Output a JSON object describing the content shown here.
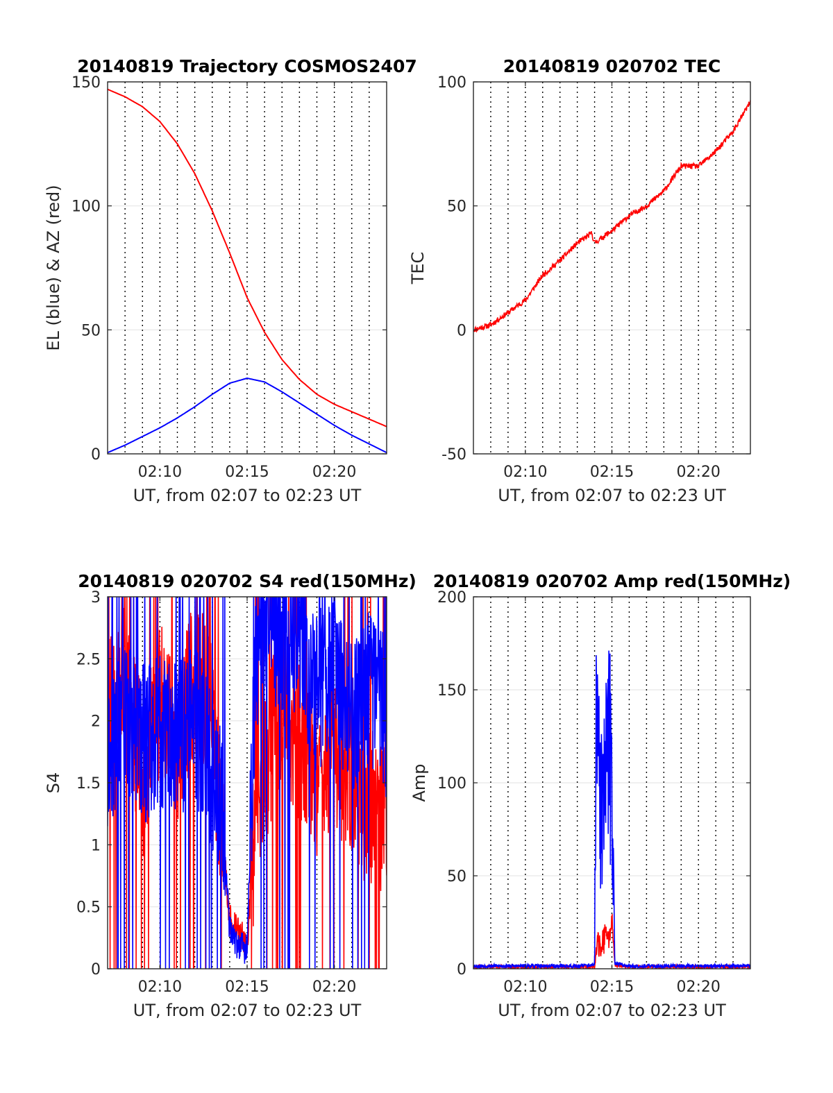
{
  "colors": {
    "el": "#0000ff",
    "az": "#ff0000",
    "tec": "#ff0000",
    "s4_red": "#ff0000",
    "s4_blue": "#0000ff",
    "amp_red": "#ff0000",
    "amp_blue": "#0000ff"
  },
  "chart_data": [
    {
      "type": "line",
      "title": "20140819 Trajectory COSMOS2407",
      "xlabel": "UT, from 02:07 to 02:23 UT",
      "ylabel": "EL (blue) & AZ (red)",
      "xlim": [
        "02:07",
        "02:23"
      ],
      "ylim": [
        0,
        150
      ],
      "xticks": [
        "02:10",
        "02:15",
        "02:20"
      ],
      "yticks": [
        0,
        50,
        100,
        150
      ],
      "grid": true,
      "series": [
        {
          "color": "#ff0000",
          "x": [
            "02:07",
            "02:08",
            "02:09",
            "02:10",
            "02:11",
            "02:12",
            "02:13",
            "02:14",
            "02:15",
            "02:16",
            "02:17",
            "02:18",
            "02:19",
            "02:20",
            "02:21",
            "02:22",
            "02:23"
          ],
          "values": [
            147,
            144,
            140,
            134,
            125,
            113,
            98,
            81,
            63,
            49,
            38,
            30,
            24,
            20,
            17,
            14,
            11
          ]
        },
        {
          "color": "#0000ff",
          "x": [
            "02:07",
            "02:08",
            "02:09",
            "02:10",
            "02:11",
            "02:12",
            "02:13",
            "02:14",
            "02:15",
            "02:16",
            "02:17",
            "02:18",
            "02:19",
            "02:20",
            "02:21",
            "02:22",
            "02:23"
          ],
          "values": [
            0.5,
            3.5,
            7,
            10.5,
            14.5,
            19,
            24,
            28.5,
            30.5,
            29,
            25,
            20.5,
            16,
            11.5,
            7.5,
            4,
            0.5
          ]
        }
      ]
    },
    {
      "type": "line",
      "title": "20140819 020702 TEC",
      "xlabel": "UT, from 02:07 to 02:23 UT",
      "ylabel": "TEC",
      "xlim": [
        "02:07",
        "02:23"
      ],
      "ylim": [
        -50,
        100
      ],
      "xticks": [
        "02:10",
        "02:15",
        "02:20"
      ],
      "yticks": [
        -50,
        0,
        50,
        100
      ],
      "grid": true,
      "series": [
        {
          "color": "#ff0000",
          "x": [
            "02:07",
            "02:08",
            "02:09",
            "02:10",
            "02:11",
            "02:12",
            "02:13",
            "02:13:50",
            "02:14",
            "02:15",
            "02:16",
            "02:17",
            "02:18",
            "02:19",
            "02:20",
            "02:21",
            "02:22",
            "02:23"
          ],
          "values": [
            0,
            2,
            7,
            12,
            22,
            28,
            35,
            39,
            35,
            40,
            46,
            50,
            56,
            66,
            66,
            72,
            80,
            92
          ]
        }
      ]
    },
    {
      "type": "line",
      "title": "20140819 020702 S4 red(150MHz)",
      "xlabel": "UT, from 02:07 to 02:23 UT",
      "ylabel": "S4",
      "xlim": [
        "02:07",
        "02:23"
      ],
      "ylim": [
        0,
        3
      ],
      "xticks": [
        "02:10",
        "02:15",
        "02:20"
      ],
      "yticks": [
        0,
        0.5,
        1,
        1.5,
        2,
        2.5,
        3
      ],
      "grid": true,
      "series": [
        {
          "color": "#ff0000",
          "x": [
            "02:07",
            "02:08",
            "02:09",
            "02:10",
            "02:11",
            "02:12",
            "02:13",
            "02:13:30",
            "02:14",
            "02:14:30",
            "02:15",
            "02:15:30",
            "02:16",
            "02:17",
            "02:18",
            "02:19",
            "02:20",
            "02:21",
            "02:22",
            "02:23"
          ],
          "values": [
            2.0,
            2.5,
            1.5,
            2.2,
            1.8,
            2.4,
            2.0,
            1.2,
            0.4,
            0.3,
            0.2,
            1.2,
            1.6,
            2.2,
            1.8,
            1.5,
            1.8,
            1.5,
            1.3,
            1.2
          ]
        },
        {
          "color": "#0000ff",
          "x": [
            "02:07",
            "02:08",
            "02:09",
            "02:10",
            "02:11",
            "02:12",
            "02:13",
            "02:13:30",
            "02:14",
            "02:14:30",
            "02:15",
            "02:15:30",
            "02:16",
            "02:17",
            "02:18",
            "02:19",
            "02:20",
            "02:21",
            "02:22",
            "02:23"
          ],
          "values": [
            1.7,
            2.0,
            1.8,
            1.9,
            1.8,
            2.0,
            1.6,
            1.4,
            0.3,
            0.18,
            0.15,
            2.5,
            2.9,
            2.6,
            2.7,
            2.2,
            2.5,
            2.0,
            2.3,
            2.0
          ]
        }
      ]
    },
    {
      "type": "line",
      "title": "20140819 020702 Amp red(150MHz)",
      "xlabel": "UT, from 02:07 to 02:23 UT",
      "ylabel": "Amp",
      "xlim": [
        "02:07",
        "02:23"
      ],
      "ylim": [
        0,
        200
      ],
      "xticks": [
        "02:10",
        "02:15",
        "02:20"
      ],
      "yticks": [
        0,
        50,
        100,
        150,
        200
      ],
      "grid": true,
      "series": [
        {
          "color": "#ff0000",
          "x": [
            "02:07",
            "02:13",
            "02:14",
            "02:14:10",
            "02:14:30",
            "02:15",
            "02:15:10",
            "02:16",
            "02:23"
          ],
          "values": [
            1,
            1,
            1,
            18,
            20,
            30,
            2,
            1,
            1
          ]
        },
        {
          "color": "#0000ff",
          "x": [
            "02:07",
            "02:13",
            "02:14",
            "02:14:05",
            "02:14:20",
            "02:14:50",
            "02:15",
            "02:15:10",
            "02:16",
            "02:23"
          ],
          "values": [
            1.5,
            1.5,
            2,
            195,
            110,
            165,
            135,
            3,
            1.5,
            1.5
          ]
        }
      ]
    }
  ]
}
